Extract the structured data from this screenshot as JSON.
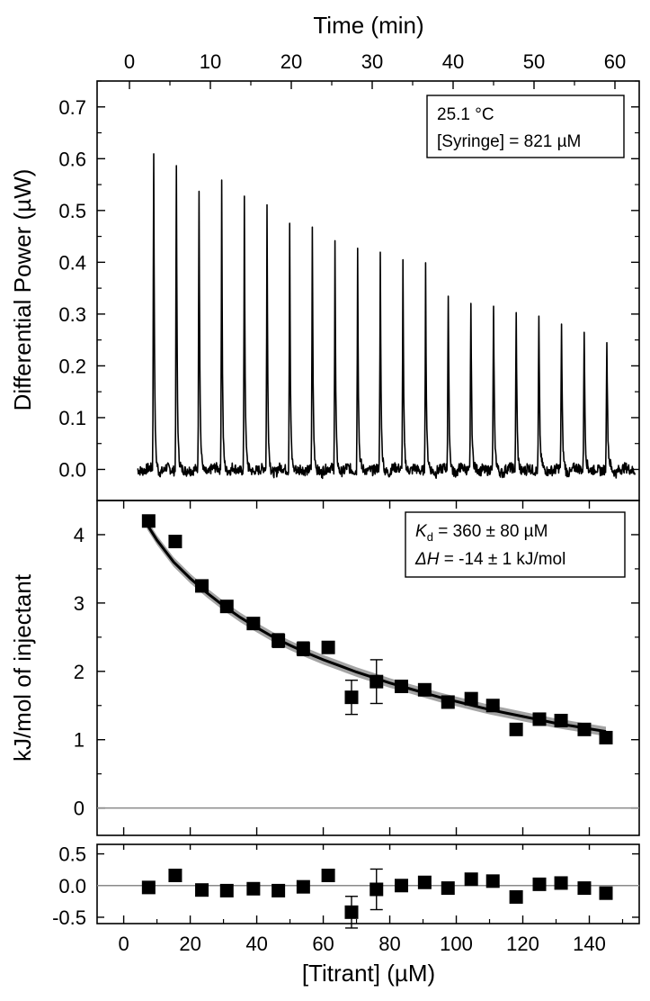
{
  "chart_data": [
    {
      "type": "line",
      "name": "thermogram",
      "xlabel": "Time (min)",
      "ylabel": "Differential Power (µW)",
      "xlim": [
        -4,
        63
      ],
      "ylim": [
        -0.06,
        0.75
      ],
      "x_ticks": [
        0,
        10,
        20,
        30,
        40,
        50,
        60
      ],
      "y_ticks": [
        0.0,
        0.1,
        0.2,
        0.3,
        0.4,
        0.5,
        0.6,
        0.7
      ],
      "y_tick_labels": [
        "0.0",
        "0.1",
        "0.2",
        "0.3",
        "0.4",
        "0.5",
        "0.6",
        "0.7"
      ],
      "baseline": 0.0,
      "trace_start_min": 1.0,
      "trace_end_min": 62.5,
      "injection_times_min": [
        3.0,
        5.8,
        8.6,
        11.4,
        14.2,
        17.0,
        19.8,
        22.6,
        25.4,
        28.2,
        31.0,
        33.8,
        36.6,
        39.4,
        42.2,
        45.0,
        47.8,
        50.6,
        53.4,
        56.2,
        59.0
      ],
      "peak_heights_uW": [
        0.68,
        0.655,
        0.6,
        0.555,
        0.52,
        0.495,
        0.47,
        0.46,
        0.43,
        0.425,
        0.405,
        0.4,
        0.38,
        0.37,
        0.365,
        0.34,
        0.335,
        0.325,
        0.31,
        0.305,
        0.28
      ],
      "annotations": [
        "25.1 °C",
        "[Syringe] = 821 µM"
      ]
    },
    {
      "type": "scatter",
      "name": "integrated heats",
      "ylabel": "kJ/mol of injectant",
      "xlim": [
        -8,
        155
      ],
      "ylim": [
        -0.4,
        4.5
      ],
      "y_ticks": [
        0,
        1,
        2,
        3,
        4
      ],
      "x": [
        7.5,
        15.5,
        23.5,
        31,
        39,
        46.5,
        54,
        61.5,
        68.5,
        76,
        83.5,
        90.5,
        97.5,
        104.5,
        111,
        118,
        125,
        131.5,
        138.5,
        145
      ],
      "y": [
        4.2,
        3.9,
        3.25,
        2.95,
        2.7,
        2.45,
        2.33,
        2.35,
        1.62,
        1.85,
        1.78,
        1.73,
        1.55,
        1.6,
        1.5,
        1.15,
        1.3,
        1.28,
        1.15,
        1.03
      ],
      "error": [
        0.05,
        0.05,
        0.08,
        0.05,
        0.07,
        0.1,
        0.1,
        0.06,
        0.25,
        0.32,
        0.06,
        0.05,
        0.05,
        0.05,
        0.05,
        0.05,
        0.05,
        0.05,
        0.05,
        0.05
      ],
      "fit_x": [
        7,
        10,
        15,
        20,
        25,
        30,
        35,
        40,
        45,
        50,
        55,
        60,
        65,
        70,
        75,
        80,
        85,
        90,
        95,
        100,
        105,
        110,
        115,
        120,
        125,
        130,
        135,
        140,
        145
      ],
      "fit_y": [
        4.15,
        3.92,
        3.6,
        3.36,
        3.15,
        2.96,
        2.79,
        2.64,
        2.5,
        2.38,
        2.27,
        2.17,
        2.08,
        1.99,
        1.91,
        1.83,
        1.76,
        1.69,
        1.62,
        1.56,
        1.5,
        1.44,
        1.39,
        1.34,
        1.29,
        1.24,
        1.2,
        1.16,
        1.12
      ],
      "annotations": {
        "kd_value": " = 360 ± 80 µM",
        "dh_value": " = -14 ± 1 kJ/mol"
      }
    },
    {
      "type": "scatter",
      "name": "residuals",
      "xlabel": "[Titrant] (µM)",
      "xlim": [
        -8,
        155
      ],
      "ylim": [
        -0.6,
        0.65
      ],
      "x_ticks": [
        0,
        20,
        40,
        60,
        80,
        100,
        120,
        140
      ],
      "y_ticks": [
        -0.5,
        0.0,
        0.5
      ],
      "y_tick_labels": [
        "-0.5",
        "0.0",
        "0.5"
      ],
      "x": [
        7.5,
        15.5,
        23.5,
        31,
        39,
        46.5,
        54,
        61.5,
        68.5,
        76,
        83.5,
        90.5,
        97.5,
        104.5,
        111,
        118,
        125,
        131.5,
        138.5,
        145
      ],
      "y": [
        -0.03,
        0.16,
        -0.07,
        -0.08,
        -0.05,
        -0.08,
        -0.02,
        0.16,
        -0.42,
        -0.06,
        0.0,
        0.05,
        -0.04,
        0.1,
        0.07,
        -0.18,
        0.02,
        0.04,
        -0.04,
        -0.12
      ],
      "error": [
        0,
        0,
        0,
        0,
        0,
        0,
        0,
        0,
        0.25,
        0.32,
        0,
        0,
        0,
        0,
        0,
        0,
        0,
        0,
        0,
        0
      ]
    }
  ],
  "labels": {
    "top_xlabel": "Time (min)",
    "top_ylabel": "Differential Power (µW)",
    "mid_ylabel": "kJ/mol of injectant",
    "bottom_xlabel": "[Titrant] (µM)",
    "temp": "25.1 °C",
    "syringe": "[Syringe] = 821 µM",
    "kd_symbol": "K",
    "kd_sub": "d",
    "kd_value": " = 360 ± 80 µM",
    "dh_symbol": "ΔH",
    "dh_value": " = -14 ± 1 kJ/mol"
  },
  "colors": {
    "trace": "#000000",
    "fit": "#000000",
    "fit_band": "#9a9a9a",
    "zero_line": "#8a8a8a",
    "marker": "#000000"
  }
}
